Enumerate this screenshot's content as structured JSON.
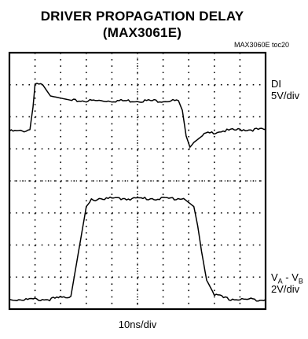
{
  "title_line1": "DRIVER PROPAGATION DELAY",
  "title_line2": "(MAX3061E)",
  "figure_id": "MAX3060E toc20",
  "x_scale_label": "10ns/div",
  "channels": [
    {
      "name": "DI",
      "scale": "5V/div"
    },
    {
      "name_main": "V",
      "name_sub1": "A",
      "name_sep": " - V",
      "name_sub2": "B",
      "scale": "2V/div"
    }
  ],
  "chart_data": {
    "type": "line",
    "title": "DRIVER PROPAGATION DELAY (MAX3061E)",
    "xlabel": "10ns/div",
    "x_divisions": 10,
    "y_divisions": 8,
    "grid": true,
    "x_unit": "div",
    "y_unit": "div",
    "series": [
      {
        "name": "DI",
        "scale": "5V/div",
        "x": [
          0.0,
          0.5,
          0.8,
          0.92,
          1.0,
          1.3,
          1.6,
          2.5,
          4.0,
          5.5,
          6.6,
          6.75,
          6.9,
          7.05,
          7.2,
          7.6,
          8.2,
          9.0,
          10.0
        ],
        "y": [
          5.55,
          5.55,
          5.6,
          6.3,
          7.0,
          7.0,
          6.65,
          6.5,
          6.5,
          6.5,
          6.5,
          6.2,
          5.4,
          5.05,
          5.2,
          5.45,
          5.55,
          5.6,
          5.6
        ]
      },
      {
        "name": "VA - VB",
        "scale": "2V/div",
        "x": [
          0.0,
          1.5,
          2.4,
          2.7,
          3.0,
          3.2,
          3.5,
          4.0,
          5.5,
          6.8,
          7.2,
          7.35,
          7.5,
          7.7,
          8.0,
          8.5,
          9.0,
          10.0
        ],
        "y": [
          0.3,
          0.3,
          0.4,
          1.8,
          3.2,
          3.4,
          3.45,
          3.45,
          3.45,
          3.45,
          3.2,
          2.6,
          1.8,
          0.9,
          0.45,
          0.32,
          0.3,
          0.3
        ]
      }
    ]
  }
}
